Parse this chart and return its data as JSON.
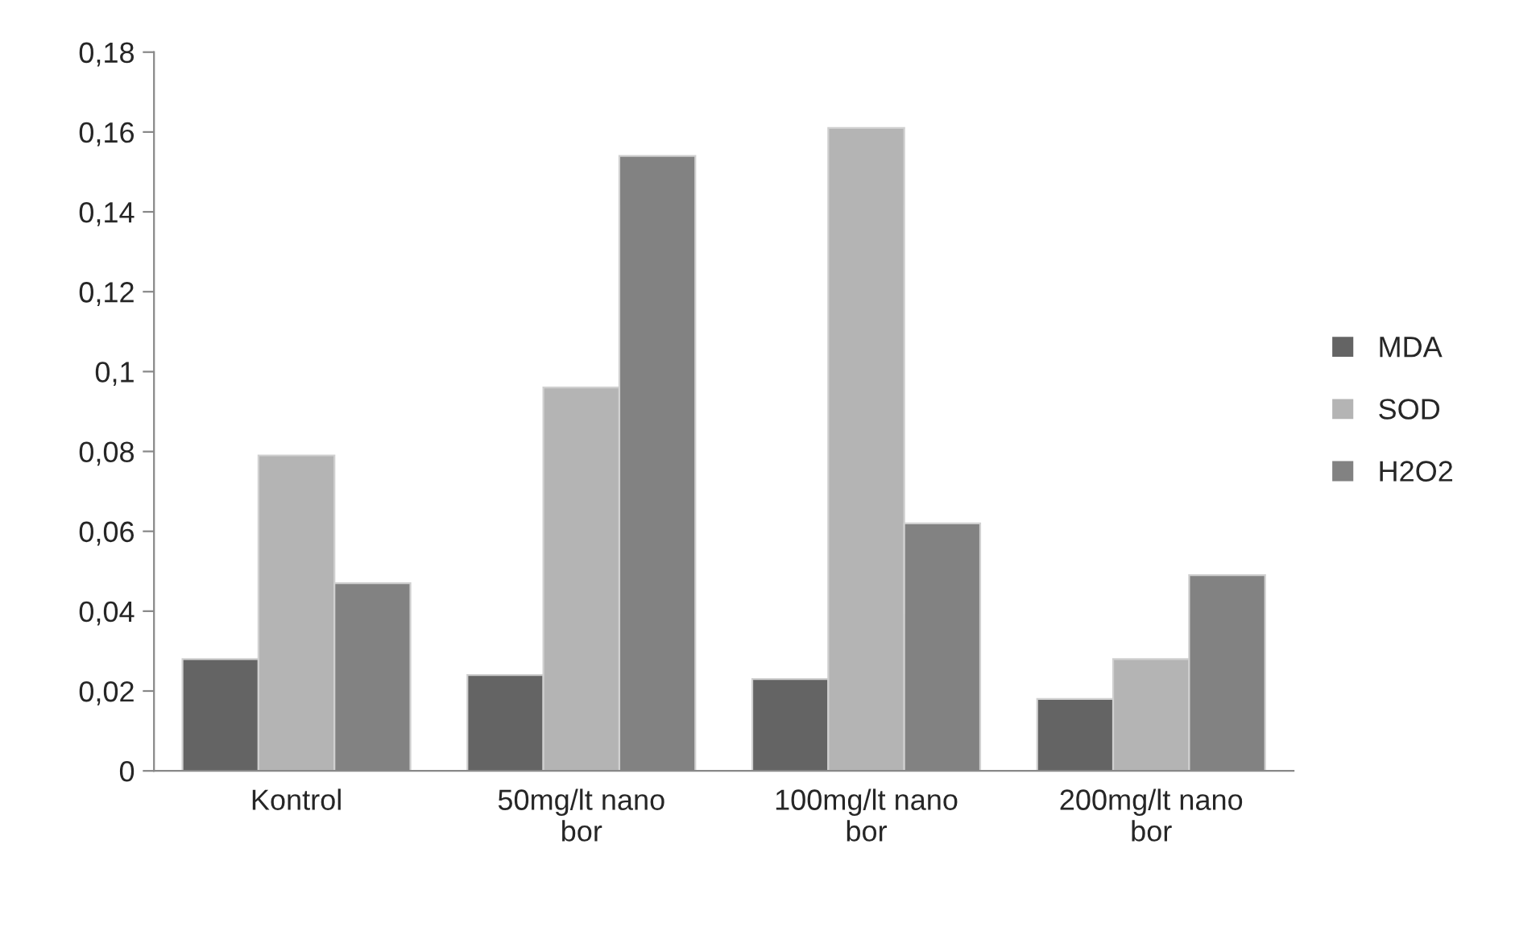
{
  "chart_data": {
    "type": "bar",
    "categories": [
      "Kontrol",
      "50mg/lt nano\nbor",
      "100mg/lt nano\nbor",
      "200mg/lt nano\nbor"
    ],
    "series": [
      {
        "name": "MDA",
        "color": "#646464",
        "values": [
          0.028,
          0.024,
          0.023,
          0.018
        ]
      },
      {
        "name": "SOD",
        "color": "#b4b4b4",
        "values": [
          0.079,
          0.096,
          0.161,
          0.028
        ]
      },
      {
        "name": "H2O2",
        "color": "#828282",
        "values": [
          0.047,
          0.154,
          0.062,
          0.049
        ]
      }
    ],
    "ylim": [
      0,
      0.18
    ],
    "yticks": [
      {
        "value": 0,
        "label": "0"
      },
      {
        "value": 0.02,
        "label": "0,02"
      },
      {
        "value": 0.04,
        "label": "0,04"
      },
      {
        "value": 0.06,
        "label": "0,06"
      },
      {
        "value": 0.08,
        "label": "0,08"
      },
      {
        "value": 0.1,
        "label": "0,1"
      },
      {
        "value": 0.12,
        "label": "0,12"
      },
      {
        "value": 0.14,
        "label": "0,14"
      },
      {
        "value": 0.16,
        "label": "0,16"
      },
      {
        "value": 0.18,
        "label": "0,18"
      }
    ],
    "grid": false,
    "legend": "right"
  }
}
